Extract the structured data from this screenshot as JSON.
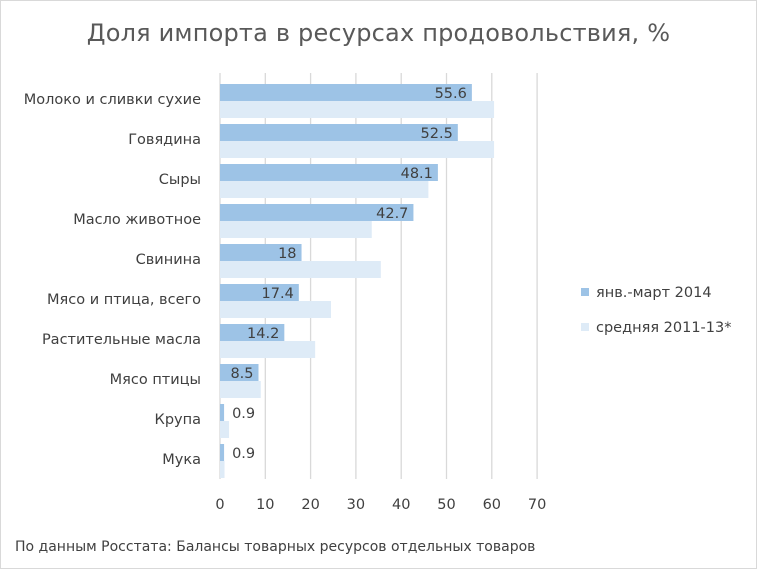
{
  "chart_data": {
    "type": "bar",
    "orientation": "horizontal",
    "title": "Доля импорта в ресурсах продовольствия, %",
    "xlabel": "",
    "ylabel": "",
    "categories": [
      "Молоко и сливки сухие",
      "Говядина",
      "Сыры",
      "Масло животное",
      "Свинина",
      "Мясо и птица, всего",
      "Растительные масла",
      "Мясо птицы",
      "Крупа",
      "Мука"
    ],
    "series": [
      {
        "name": "янв.-март 2014",
        "values": [
          55.6,
          52.5,
          48.1,
          42.7,
          18,
          17.4,
          14.2,
          8.5,
          0.9,
          0.9
        ],
        "color": "#9dc3e6",
        "data_labels": [
          "55.6",
          "52.5",
          "48.1",
          "42.7",
          "18",
          "17.4",
          "14.2",
          "8.5",
          "0.9",
          "0.9"
        ]
      },
      {
        "name": "средняя 2011-13*",
        "values": [
          60.5,
          60.5,
          46,
          33.5,
          35.5,
          24.5,
          21,
          9,
          2,
          1
        ],
        "color": "#deebf7"
      }
    ],
    "xlim": [
      0,
      70
    ],
    "xticks": [
      "0",
      "10",
      "20",
      "30",
      "40",
      "50",
      "60",
      "70"
    ],
    "grid": "vertical",
    "legend_position": "right",
    "gridline_color": "#d9d9d9"
  },
  "source_note": "По данным Росстата: Балансы товарных ресурсов отдельных товаров"
}
